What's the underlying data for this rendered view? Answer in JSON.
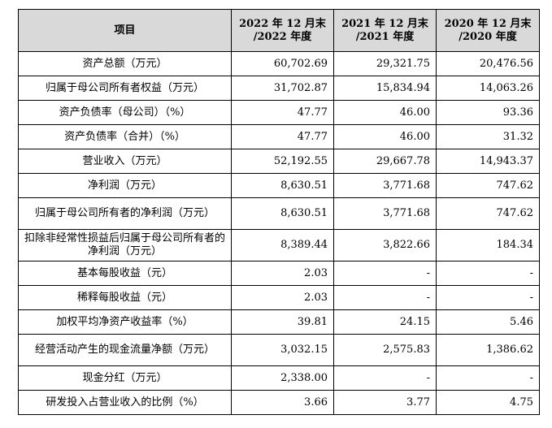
{
  "table": {
    "headers": [
      {
        "line1": "项目",
        "line2": ""
      },
      {
        "line1": "2022 年 12 月末",
        "line2": "/2022 年度"
      },
      {
        "line1": "2021 年 12 月末",
        "line2": "/2021 年度"
      },
      {
        "line1": "2020 年 12 月末",
        "line2": "/2020 年度"
      }
    ],
    "rows": [
      {
        "label": "资产总额（万元）",
        "v2022": "60,702.69",
        "v2021": "29,321.75",
        "v2020": "20,476.56"
      },
      {
        "label": "归属于母公司所有者权益（万元）",
        "v2022": "31,702.87",
        "v2021": "15,834.94",
        "v2020": "14,063.26"
      },
      {
        "label": "资产负债率（母公司）（%）",
        "v2022": "47.77",
        "v2021": "46.00",
        "v2020": "93.36"
      },
      {
        "label": "资产负债率（合并）（%）",
        "v2022": "47.77",
        "v2021": "46.00",
        "v2020": "31.32"
      },
      {
        "label": "营业收入（万元）",
        "v2022": "52,192.55",
        "v2021": "29,667.78",
        "v2020": "14,943.37"
      },
      {
        "label": "净利润（万元）",
        "v2022": "8,630.51",
        "v2021": "3,771.68",
        "v2020": "747.62"
      },
      {
        "label": "归属于母公司所有者的净利润（万元）",
        "v2022": "8,630.51",
        "v2021": "3,771.68",
        "v2020": "747.62"
      },
      {
        "label": "扣除非经常性损益后归属于母公司所有者的净利润（万元）",
        "v2022": "8,389.44",
        "v2021": "3,822.66",
        "v2020": "184.34"
      },
      {
        "label": "基本每股收益（元）",
        "v2022": "2.03",
        "v2021": "-",
        "v2020": "-"
      },
      {
        "label": "稀释每股收益（元）",
        "v2022": "2.03",
        "v2021": "-",
        "v2020": "-"
      },
      {
        "label": "加权平均净资产收益率（%）",
        "v2022": "39.81",
        "v2021": "24.15",
        "v2020": "5.46"
      },
      {
        "label": "经营活动产生的现金流量净额（万元）",
        "v2022": "3,032.15",
        "v2021": "2,575.83",
        "v2020": "1,386.62"
      },
      {
        "label": "现金分红（万元）",
        "v2022": "2,338.00",
        "v2021": "-",
        "v2020": "-"
      },
      {
        "label": "研发投入占营业收入的比例（%）",
        "v2022": "3.66",
        "v2021": "3.77",
        "v2020": "4.75"
      }
    ]
  }
}
